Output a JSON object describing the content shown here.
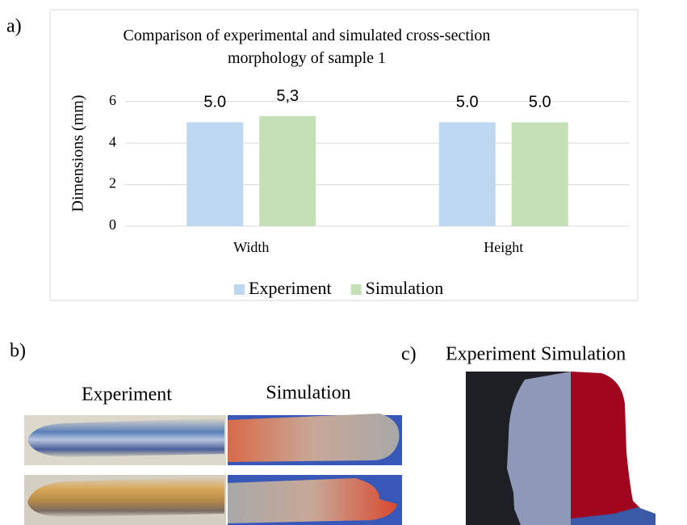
{
  "chart_data": {
    "type": "bar",
    "title": "Comparison of experimental and simulated cross-section morphology of sample 1",
    "y_label": "Dimensions (mm)",
    "categories": [
      "Width",
      "Height"
    ],
    "series": [
      {
        "name": "Experiment",
        "color": "#bdd7ee",
        "values": [
          5.0,
          5.0
        ],
        "value_labels": [
          "5.0",
          "5.0"
        ]
      },
      {
        "name": "Simulation",
        "color": "#c5e0b4",
        "values": [
          5.3,
          5.0
        ],
        "value_labels": [
          "5,3",
          "5.0"
        ]
      }
    ],
    "ylim": [
      0,
      7
    ],
    "yticks": [
      0,
      2,
      4,
      6
    ],
    "grid": true,
    "legend": "bottom"
  },
  "panel_labels": [
    "a)",
    "b)",
    "c)"
  ],
  "panel_b": {
    "captions": [
      "Experiment",
      "Simulation"
    ]
  },
  "panel_c": {
    "caption": "Experiment Simulation"
  }
}
